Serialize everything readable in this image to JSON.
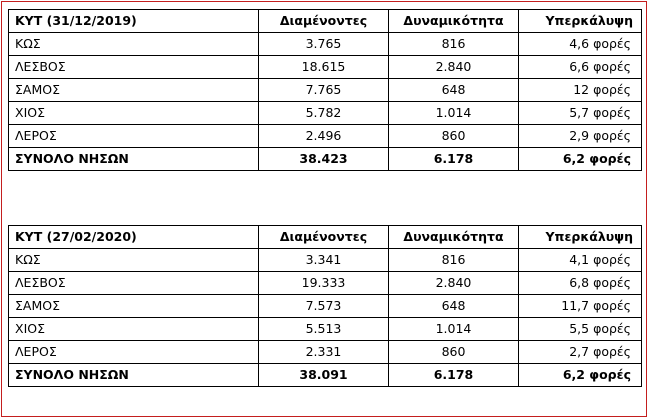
{
  "tables": [
    {
      "header": [
        "ΚΥΤ (31/12/2019)",
        "Διαμένοντες",
        "Δυναμικότητα",
        "Υπερκάλυψη"
      ],
      "rows": [
        [
          "ΚΩΣ",
          "3.765",
          "816",
          "4,6 φορές"
        ],
        [
          "ΛΕΣΒΟΣ",
          "18.615",
          "2.840",
          "6,6 φορές"
        ],
        [
          "ΣΑΜΟΣ",
          "7.765",
          "648",
          "12 φορές"
        ],
        [
          "ΧΙΟΣ",
          "5.782",
          "1.014",
          "5,7 φορές"
        ],
        [
          "ΛΕΡΟΣ",
          "2.496",
          "860",
          "2,9 φορές"
        ]
      ],
      "total": [
        "ΣΥΝΟΛΟ ΝΗΣΩΝ",
        "38.423",
        "6.178",
        "6,2 φορές"
      ]
    },
    {
      "header": [
        "ΚΥΤ (27/02/2020)",
        "Διαμένοντες",
        "Δυναμικότητα",
        "Υπερκάλυψη"
      ],
      "rows": [
        [
          "ΚΩΣ",
          "3.341",
          "816",
          "4,1 φορές"
        ],
        [
          "ΛΕΣΒΟΣ",
          "19.333",
          "2.840",
          "6,8 φορές"
        ],
        [
          "ΣΑΜΟΣ",
          "7.573",
          "648",
          "11,7 φορές"
        ],
        [
          "ΧΙΟΣ",
          "5.513",
          "1.014",
          "5,5 φορές"
        ],
        [
          "ΛΕΡΟΣ",
          "2.331",
          "860",
          "2,7 φορές"
        ]
      ],
      "total": [
        "ΣΥΝΟΛΟ ΝΗΣΩΝ",
        "38.091",
        "6.178",
        "6,2 φορές"
      ]
    }
  ],
  "colors": {
    "frame_border": "#c41e1e",
    "cell_border": "#000000"
  }
}
